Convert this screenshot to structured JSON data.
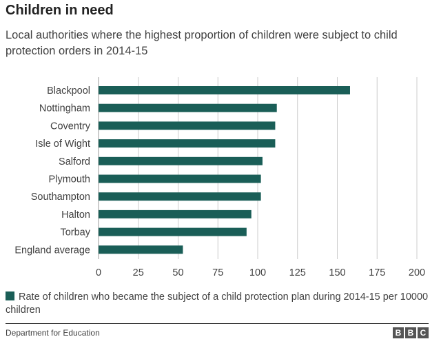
{
  "header": {
    "title": "Children in need",
    "subtitle": "Local authorities where the highest proportion of children were subject to child protection orders in 2014-15"
  },
  "legend": {
    "label": "Rate of children who became the subject of a child protection plan during 2014-15 per 10000 children"
  },
  "footer": {
    "source": "Department for Education",
    "logo_letters": [
      "B",
      "B",
      "C"
    ]
  },
  "colors": {
    "bar": "#1a5e57",
    "grid": "#cccccc"
  },
  "chart_data": {
    "type": "bar",
    "orientation": "horizontal",
    "categories": [
      "Blackpool",
      "Nottingham",
      "Coventry",
      "Isle of Wight",
      "Salford",
      "Plymouth",
      "Southampton",
      "Halton",
      "Torbay",
      "England average"
    ],
    "values": [
      158,
      112,
      111,
      111,
      103,
      102,
      102,
      96,
      93,
      53
    ],
    "xlim": [
      0,
      200
    ],
    "xticks": [
      0,
      25,
      50,
      75,
      100,
      125,
      150,
      175,
      200
    ],
    "grid": true,
    "xlabel": "",
    "ylabel": ""
  }
}
